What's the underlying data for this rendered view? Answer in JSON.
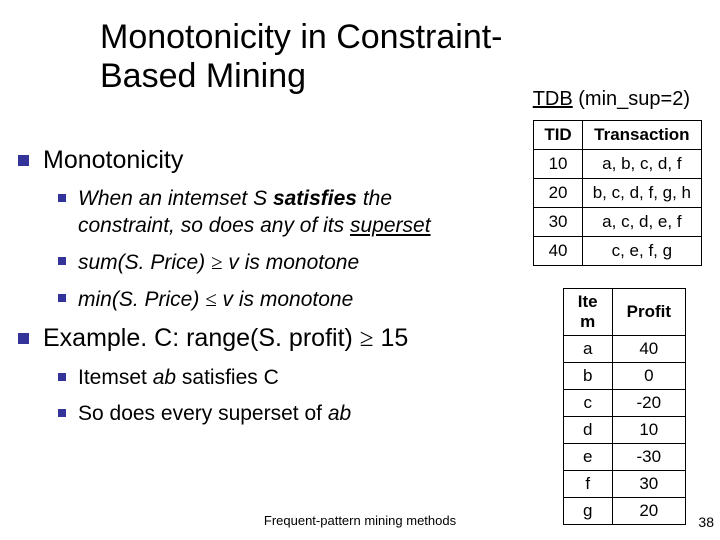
{
  "title_line1": "Monotonicity in Constraint-",
  "title_line2": "Based Mining",
  "tdb_label": "TDB",
  "tdb_detail": " (min_sup=2)",
  "bullets": {
    "b1": "Monotonicity",
    "b1a_pre": "When an intemset S ",
    "b1a_bold": "satisfies",
    "b1a_post1": " the constraint, so does any of its ",
    "b1a_post2": "superset",
    "b1b_pre": "sum(S. Price) ",
    "b1b_sym": "≥",
    "b1b_post": " v  is monotone",
    "b1c_pre": "min(S. Price) ",
    "b1c_sym": "≤",
    "b1c_post": " v  is monotone",
    "b2_pre": "Example.  C: range(S. profit) ",
    "b2_sym": "≥",
    "b2_post": " 15",
    "b2a_pre": "Itemset ",
    "b2a_it": "ab",
    "b2a_post": " satisfies C",
    "b2b_pre": "So does every superset of ",
    "b2b_it": "ab"
  },
  "table1": {
    "headers": [
      "TID",
      "Transaction"
    ],
    "rows": [
      [
        "10",
        "a, b, c, d, f"
      ],
      [
        "20",
        "b, c, d, f, g, h"
      ],
      [
        "30",
        "a, c, d, e, f"
      ],
      [
        "40",
        "c, e, f, g"
      ]
    ]
  },
  "table2": {
    "headers": [
      "Ite\nm",
      "Profit"
    ],
    "rows": [
      [
        "a",
        "40"
      ],
      [
        "b",
        "0"
      ],
      [
        "c",
        "-20"
      ],
      [
        "d",
        "10"
      ],
      [
        "e",
        "-30"
      ],
      [
        "f",
        "30"
      ],
      [
        "g",
        "20"
      ]
    ]
  },
  "footer": "Frequent-pattern mining methods",
  "pagenum": "38"
}
